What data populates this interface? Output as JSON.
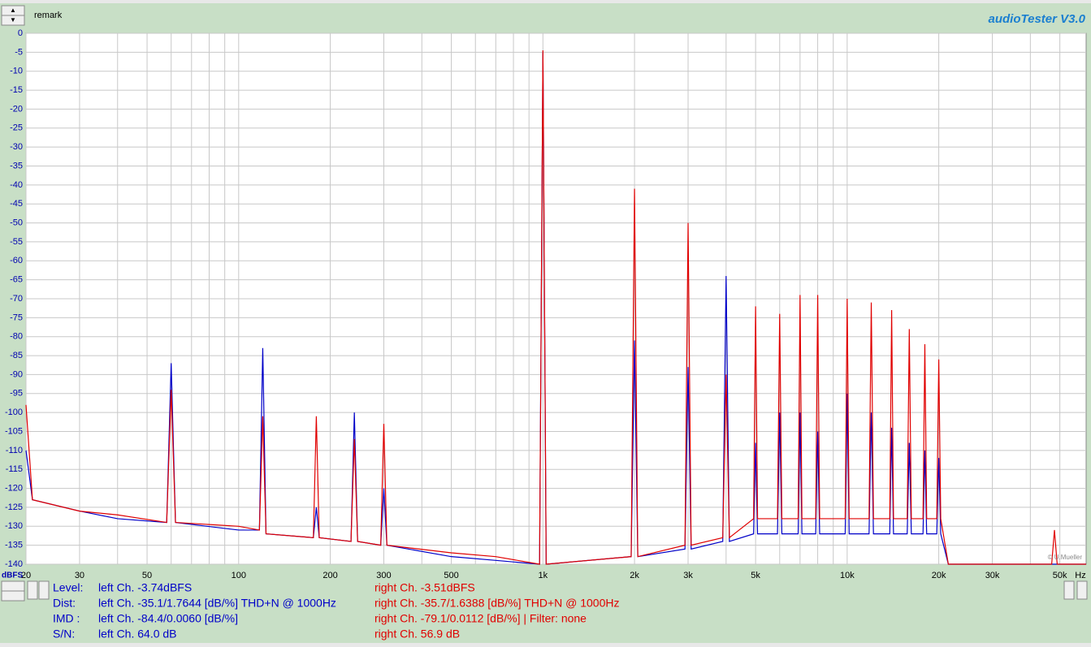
{
  "header": {
    "remark": "remark",
    "title": "audioTester  V3.0"
  },
  "chart_data": {
    "type": "line",
    "xscale": "log",
    "grid": true,
    "y_unit": "dBFS",
    "x_unit": "Hz",
    "watermark": "© U.Mueller",
    "xlim": [
      20,
      61000
    ],
    "ylim": [
      -140,
      0
    ],
    "yticks": [
      0,
      -5,
      -10,
      -15,
      -20,
      -25,
      -30,
      -35,
      -40,
      -45,
      -50,
      -55,
      -60,
      -65,
      -70,
      -75,
      -80,
      -85,
      -90,
      -95,
      -100,
      -105,
      -110,
      -115,
      -120,
      -125,
      -130,
      -135,
      -140
    ],
    "xticks": [
      20,
      30,
      50,
      100,
      200,
      300,
      500,
      {
        "value": 1000,
        "label": "1k"
      },
      {
        "value": 2000,
        "label": "2k"
      },
      {
        "value": 3000,
        "label": "3k"
      },
      {
        "value": 5000,
        "label": "5k"
      },
      {
        "value": 10000,
        "label": "10k"
      },
      {
        "value": 20000,
        "label": "20k"
      },
      {
        "value": 30000,
        "label": "30k"
      },
      {
        "value": 50000,
        "label": "50k"
      }
    ],
    "xminor": [
      40,
      60,
      70,
      80,
      90,
      400,
      600,
      700,
      800,
      900,
      4000,
      6000,
      7000,
      8000,
      9000,
      40000
    ],
    "x": [
      20,
      21,
      30,
      40,
      58,
      60,
      62,
      100,
      117,
      120,
      123,
      176,
      180,
      184,
      234,
      240,
      246,
      293,
      300,
      307,
      500,
      700,
      975,
      1000,
      1025,
      1950,
      2000,
      2050,
      2930,
      3000,
      3070,
      3900,
      4000,
      4100,
      4925,
      5000,
      5075,
      5900,
      6000,
      6100,
      6900,
      7000,
      7100,
      7880,
      8000,
      8120,
      9850,
      10000,
      10150,
      11800,
      12000,
      12200,
      13800,
      14000,
      14200,
      15750,
      16000,
      16250,
      17750,
      18000,
      18250,
      19700,
      20000,
      20300,
      21500,
      47000,
      48000,
      49000,
      61000
    ],
    "series": [
      {
        "name": "left Ch.",
        "color": "#0000c8",
        "values": [
          -110,
          -123,
          -126,
          -128,
          -129,
          -87,
          -129,
          -131,
          -131,
          -83,
          -132,
          -133,
          -125,
          -133,
          -134,
          -100,
          -134,
          -135,
          -120,
          -135,
          -138,
          -139,
          -140,
          -5,
          -140,
          -138,
          -81,
          -138,
          -136,
          -88,
          -136,
          -134,
          -64,
          -134,
          -132,
          -108,
          -132,
          -132,
          -100,
          -132,
          -132,
          -100,
          -132,
          -132,
          -105,
          -132,
          -132,
          -95,
          -132,
          -132,
          -100,
          -132,
          -132,
          -104,
          -132,
          -132,
          -108,
          -132,
          -132,
          -110,
          -132,
          -132,
          -112,
          -132,
          -140,
          -140,
          -140,
          -140,
          -140
        ]
      },
      {
        "name": "right Ch.",
        "color": "#e00000",
        "values": [
          -98,
          -123,
          -126,
          -127,
          -129,
          -94,
          -129,
          -130,
          -131,
          -101,
          -132,
          -133,
          -101,
          -133,
          -134,
          -107,
          -134,
          -135,
          -103,
          -135,
          -137,
          -138,
          -140,
          -4.5,
          -140,
          -138,
          -41,
          -138,
          -135,
          -50,
          -135,
          -133,
          -90,
          -133,
          -128,
          -72,
          -128,
          -128,
          -74,
          -128,
          -128,
          -69,
          -128,
          -128,
          -69,
          -128,
          -128,
          -70,
          -128,
          -128,
          -71,
          -128,
          -128,
          -73,
          -128,
          -128,
          -78,
          -128,
          -128,
          -82,
          -128,
          -128,
          -86,
          -128,
          -140,
          -140,
          -131,
          -140,
          -140
        ]
      }
    ]
  },
  "readout": {
    "rows": [
      {
        "label": "Level:",
        "left": "left Ch. -3.74dBFS",
        "right": "right Ch. -3.51dBFS"
      },
      {
        "label": "Dist:",
        "left": "left Ch. -35.1/1.7644 [dB/%] THD+N  @ 1000Hz",
        "right": "right Ch. -35.7/1.6388 [dB/%] THD+N  @ 1000Hz"
      },
      {
        "label": "IMD  :",
        "left": "left Ch. -84.4/0.0060 [dB/%]",
        "right": "right Ch. -79.1/0.0112 [dB/%] |   Filter: none"
      },
      {
        "label": "S/N:",
        "left": "left Ch. 64.0 dB",
        "right": "right Ch. 56.9 dB"
      }
    ]
  }
}
